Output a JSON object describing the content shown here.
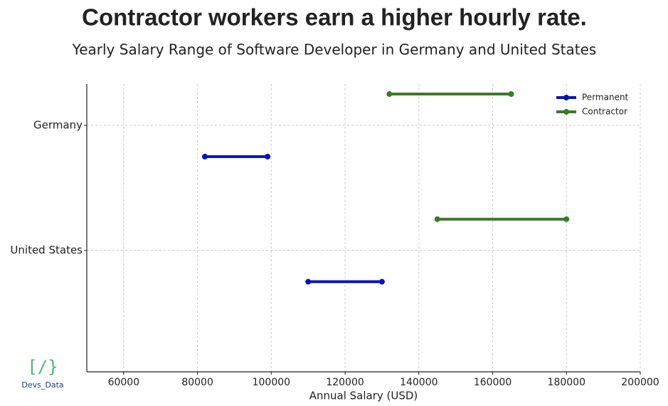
{
  "chart_data": {
    "type": "range",
    "title": "Contractor workers earn a higher hourly rate.",
    "subtitle": "Yearly Salary Range of Software Developer in Germany and United States",
    "xlabel": "Annual Salary (USD)",
    "categories": [
      "Germany",
      "United States"
    ],
    "series": [
      {
        "name": "Permanent",
        "color": "#0a14b4",
        "values": [
          [
            82000,
            99000
          ],
          [
            110000,
            130000
          ]
        ]
      },
      {
        "name": "Contractor",
        "color": "#3a7a2a",
        "values": [
          [
            132000,
            165000
          ],
          [
            145000,
            180000
          ]
        ]
      }
    ],
    "xlim": [
      50000,
      200000
    ],
    "xticks": [
      60000,
      80000,
      100000,
      120000,
      140000,
      160000,
      180000,
      200000
    ],
    "grid": true,
    "legend": "upper right"
  },
  "logo": {
    "icon": "[/}",
    "text": "Devs_Data"
  }
}
